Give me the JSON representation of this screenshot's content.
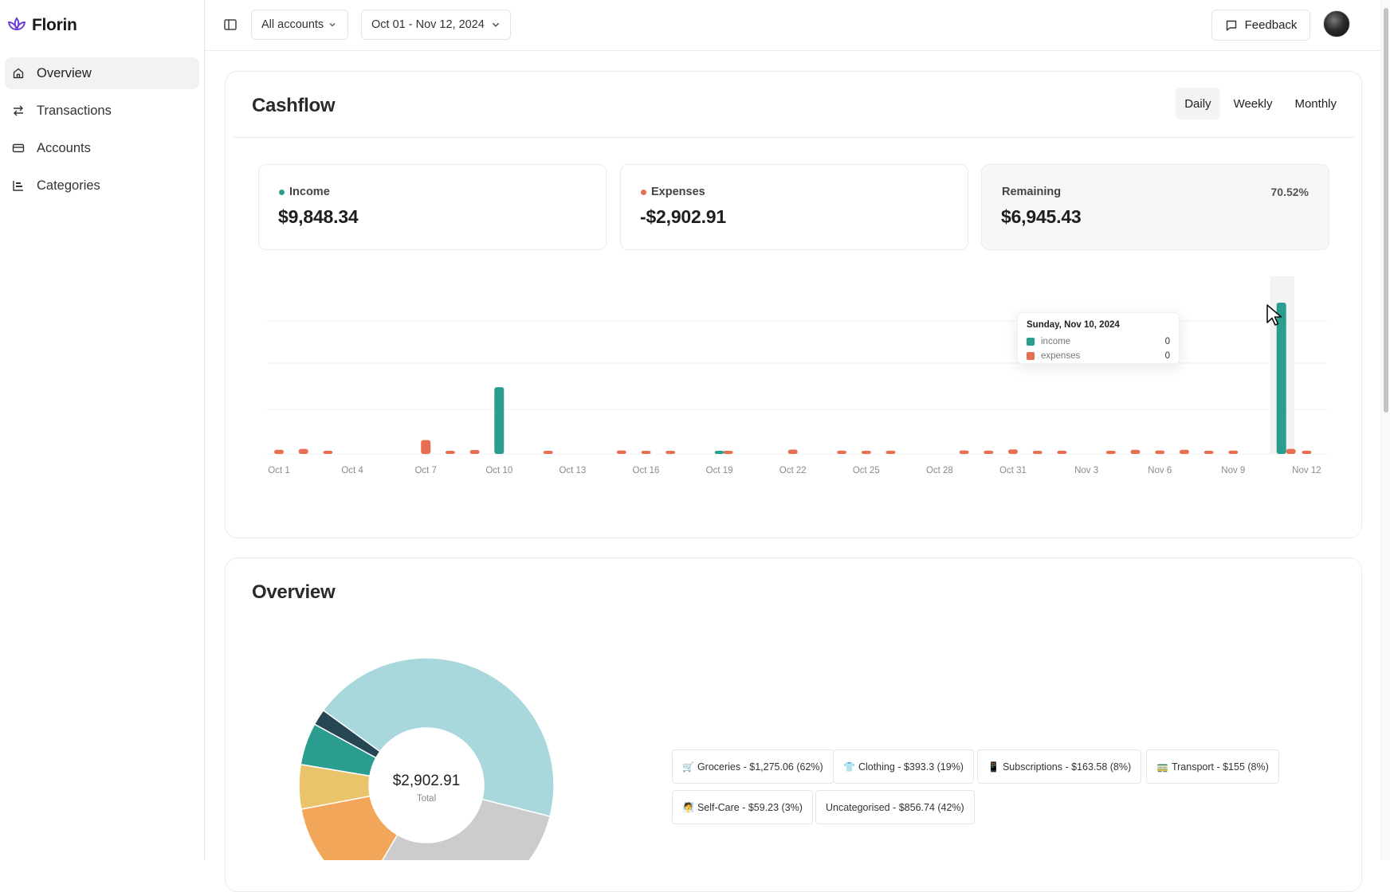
{
  "app": {
    "name": "Florin"
  },
  "sidebar": {
    "items": [
      {
        "label": "Overview",
        "icon": "home-icon",
        "active": true
      },
      {
        "label": "Transactions",
        "icon": "arrows-swap-icon",
        "active": false
      },
      {
        "label": "Accounts",
        "icon": "credit-card-icon",
        "active": false
      },
      {
        "label": "Categories",
        "icon": "categories-icon",
        "active": false
      }
    ]
  },
  "topbar": {
    "account_select": "All accounts",
    "date_range": "Oct 01 - Nov 12, 2024",
    "feedback_label": "Feedback"
  },
  "cashflow": {
    "title": "Cashflow",
    "tabs": [
      "Daily",
      "Weekly",
      "Monthly"
    ],
    "active_tab": "Daily",
    "income": {
      "label": "Income",
      "value": "$9,848.34"
    },
    "expenses": {
      "label": "Expenses",
      "value": "-$2,902.91"
    },
    "remaining": {
      "label": "Remaining",
      "value": "$6,945.43",
      "percent": "70.52%"
    },
    "tooltip": {
      "title": "Sunday, Nov 10, 2024",
      "rows": [
        {
          "name": "income",
          "value": "0"
        },
        {
          "name": "expenses",
          "value": "0"
        }
      ]
    }
  },
  "chart_data": [
    {
      "type": "bar",
      "x_ticks": [
        "Oct 1",
        "Oct 4",
        "Oct 7",
        "Oct 10",
        "Oct 13",
        "Oct 16",
        "Oct 19",
        "Oct 22",
        "Oct 25",
        "Oct 28",
        "Oct 31",
        "Nov 3",
        "Nov 6",
        "Nov 9",
        "Nov 12"
      ],
      "series": [
        {
          "name": "income",
          "color": "#2a9d8f",
          "points": [
            [
              "Oct 10",
              1500
            ],
            [
              "Oct 19",
              30
            ],
            [
              "Nov 11",
              3400
            ]
          ]
        },
        {
          "name": "expenses",
          "color": "#e76f51",
          "points": [
            [
              "Oct 1",
              40
            ],
            [
              "Oct 2",
              60
            ],
            [
              "Oct 3",
              12
            ],
            [
              "Oct 7",
              260
            ],
            [
              "Oct 8",
              15
            ],
            [
              "Oct 9",
              35
            ],
            [
              "Oct 12",
              12
            ],
            [
              "Oct 15",
              25
            ],
            [
              "Oct 16",
              12
            ],
            [
              "Oct 17",
              15
            ],
            [
              "Oct 19",
              18
            ],
            [
              "Oct 22",
              45
            ],
            [
              "Oct 24",
              20
            ],
            [
              "Oct 25",
              10
            ],
            [
              "Oct 26",
              20
            ],
            [
              "Oct 29",
              25
            ],
            [
              "Oct 30",
              20
            ],
            [
              "Oct 31",
              50
            ],
            [
              "Nov 1",
              15
            ],
            [
              "Nov 2",
              20
            ],
            [
              "Nov 4",
              10
            ],
            [
              "Nov 5",
              40
            ],
            [
              "Nov 6",
              25
            ],
            [
              "Nov 7",
              40
            ],
            [
              "Nov 8",
              10
            ],
            [
              "Nov 9",
              22
            ],
            [
              "Nov 11",
              60
            ],
            [
              "Nov 12",
              20
            ]
          ]
        }
      ],
      "grid": "horizontal",
      "legend": "none",
      "highlighted_x": "Nov 11"
    },
    {
      "type": "pie",
      "donut": true,
      "center_value": "$2,902.91",
      "center_label": "Total",
      "slices": [
        {
          "label": "Groceries",
          "value": 1275.06,
          "color": "#a8d8dc"
        },
        {
          "label": "Uncategorised",
          "value": 856.74,
          "color": "#cccccc"
        },
        {
          "label": "Clothing",
          "value": 393.3,
          "color": "#f2a65a"
        },
        {
          "label": "Subscriptions",
          "value": 163.58,
          "color": "#e9c46a"
        },
        {
          "label": "Transport",
          "value": 155,
          "color": "#2a9d8f"
        },
        {
          "label": "Self-Care",
          "value": 59.23,
          "color": "#264653"
        }
      ]
    }
  ],
  "overview": {
    "title": "Overview",
    "legend": [
      {
        "icon": "🛒",
        "text": "Groceries - $1,275.06 (62%)"
      },
      {
        "icon": "👕",
        "text": "Clothing - $393.3 (19%)"
      },
      {
        "icon": "📱",
        "text": "Subscriptions - $163.58 (8%)"
      },
      {
        "icon": "🚃",
        "text": "Transport - $155 (8%)"
      },
      {
        "icon": "🧖",
        "text": "Self-Care - $59.23 (3%)"
      },
      {
        "icon": "",
        "text": "Uncategorised - $856.74 (42%)"
      }
    ]
  }
}
